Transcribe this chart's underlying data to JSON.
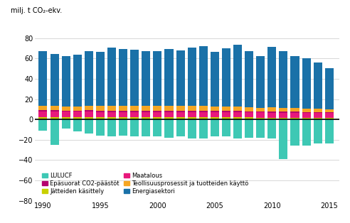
{
  "years": [
    1990,
    1991,
    1992,
    1993,
    1994,
    1995,
    1996,
    1997,
    1998,
    1999,
    2000,
    2001,
    2002,
    2003,
    2004,
    2005,
    2006,
    2007,
    2008,
    2009,
    2010,
    2011,
    2012,
    2013,
    2014,
    2015
  ],
  "energiasektori": [
    53.5,
    51.0,
    49.5,
    51.0,
    53.5,
    53.0,
    57.5,
    55.5,
    55.0,
    53.5,
    54.0,
    56.0,
    55.0,
    57.5,
    59.0,
    53.5,
    57.0,
    60.5,
    55.0,
    51.5,
    60.0,
    55.5,
    51.5,
    49.5,
    45.5,
    40.5
  ],
  "teollisuusprosessit": [
    4.5,
    4.2,
    4.0,
    4.0,
    4.5,
    4.5,
    4.5,
    4.8,
    4.8,
    4.7,
    4.8,
    4.5,
    4.5,
    4.6,
    4.7,
    4.3,
    4.5,
    4.5,
    4.0,
    3.2,
    3.8,
    3.8,
    3.5,
    3.5,
    3.3,
    3.0
  ],
  "maatalous": [
    5.5,
    5.3,
    5.2,
    5.2,
    5.2,
    5.1,
    5.1,
    5.0,
    5.0,
    5.0,
    5.0,
    5.0,
    5.0,
    5.0,
    5.0,
    5.0,
    5.0,
    5.0,
    5.0,
    5.0,
    5.0,
    4.9,
    4.9,
    4.8,
    4.7,
    4.7
  ],
  "epasuorat": [
    1.5,
    1.4,
    1.3,
    1.3,
    1.4,
    1.4,
    1.4,
    1.5,
    1.5,
    1.4,
    1.4,
    1.4,
    1.4,
    1.4,
    1.4,
    1.3,
    1.3,
    1.3,
    1.2,
    1.1,
    1.2,
    1.1,
    1.1,
    1.0,
    1.0,
    1.0
  ],
  "jatteiden": [
    2.2,
    2.3,
    2.3,
    2.3,
    2.3,
    2.3,
    2.3,
    2.3,
    2.3,
    2.3,
    2.2,
    2.2,
    2.2,
    2.1,
    2.1,
    2.1,
    2.0,
    2.0,
    1.9,
    1.8,
    1.7,
    1.7,
    1.6,
    1.5,
    1.5,
    1.4
  ],
  "lulucf": [
    -11,
    -25,
    -9,
    -12,
    -14,
    -16,
    -17,
    -16,
    -17,
    -17,
    -17,
    -18,
    -17,
    -19,
    -19,
    -17,
    -17,
    -19,
    -18,
    -18,
    -19,
    -39,
    -26,
    -26,
    -24,
    -24
  ],
  "color_energiasektori": "#1a71a8",
  "color_teollisuusprosessit": "#f5a623",
  "color_maatalous": "#e8187c",
  "color_epasuorat": "#b5006e",
  "color_jatteiden": "#c8d000",
  "color_lulucf": "#3ec8b4",
  "ylabel": "milj. t CO₂-ekv.",
  "ylim_min": -80,
  "ylim_max": 100,
  "yticks": [
    -80,
    -60,
    -40,
    -20,
    0,
    20,
    40,
    60,
    80
  ],
  "xticks": [
    1990,
    1995,
    2000,
    2005,
    2010,
    2015
  ],
  "leg_lulucf": "LULUCF",
  "leg_epasuorat": "Epäsuorat CO2-päästöt",
  "leg_jatteiden": "Jätteiden käsittely",
  "leg_maatalous": "Maatalous",
  "leg_teollisuus": "Teollisuusprosessit ja tuotteiden käyttö",
  "leg_energia": "Energiasektori"
}
